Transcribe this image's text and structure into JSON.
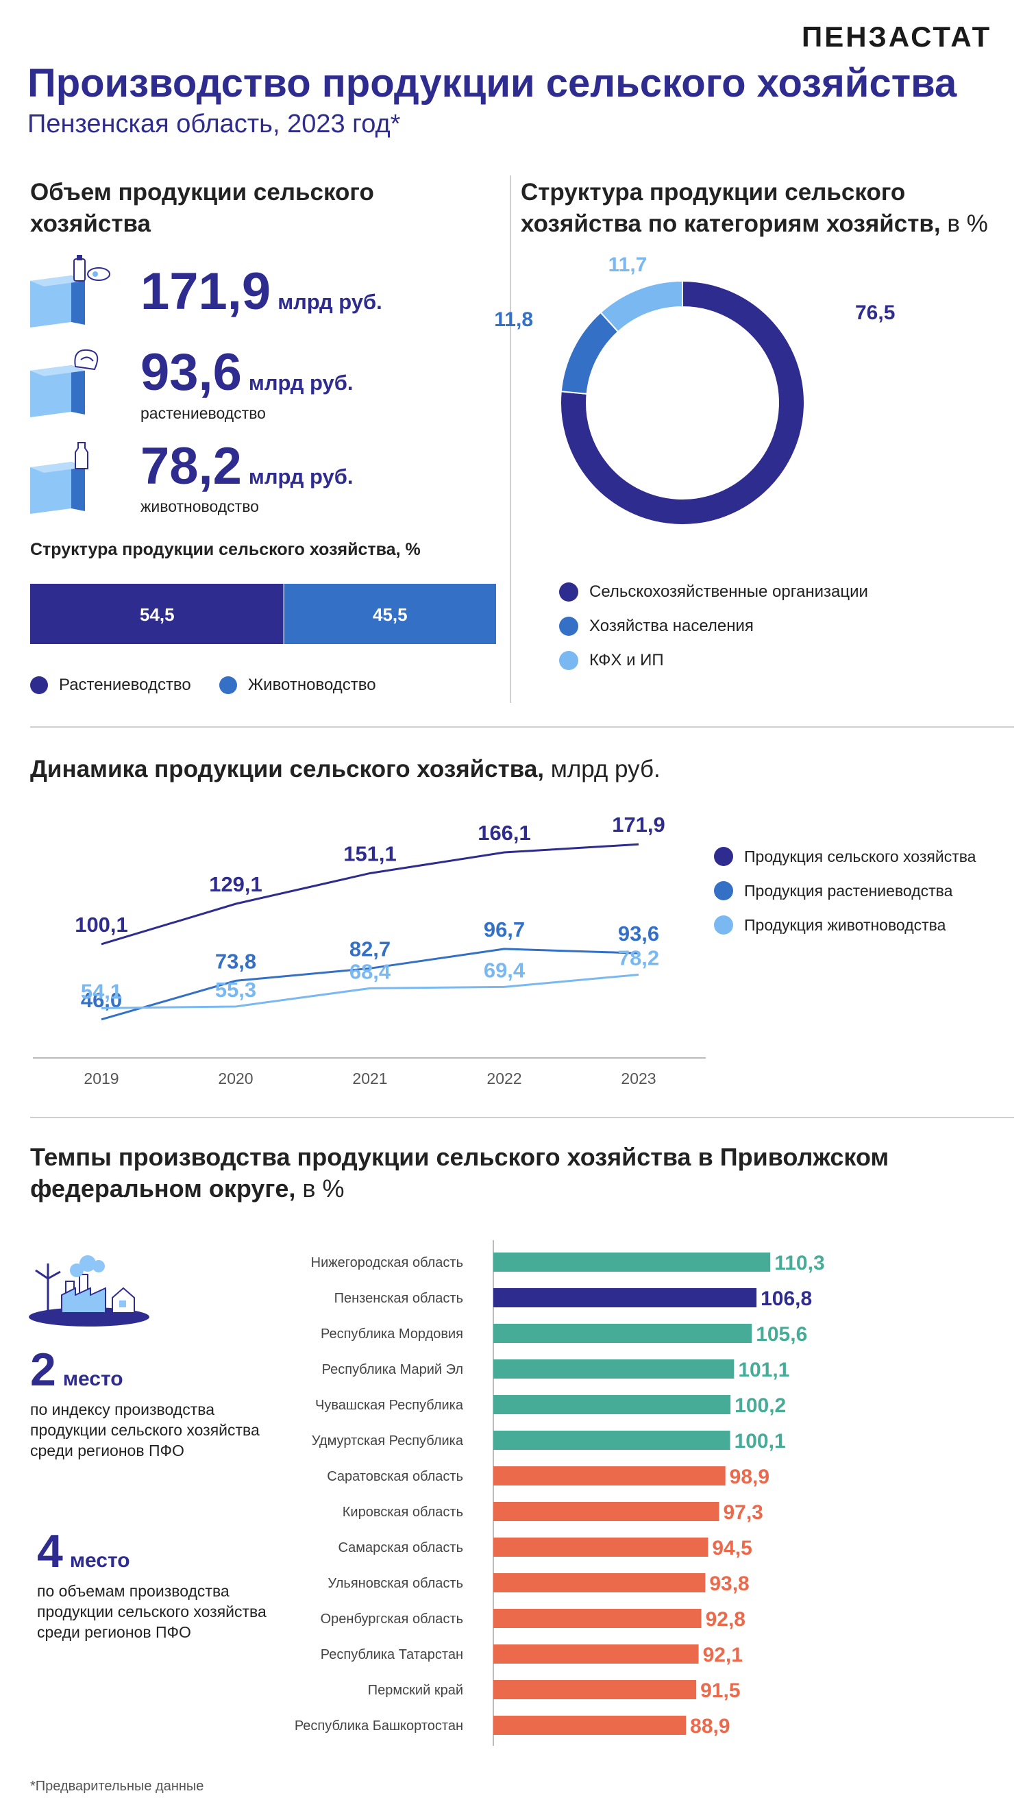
{
  "header": {
    "logo": "ПЕНЗАСТАТ",
    "title": "Производство продукции сельского хозяйства",
    "subtitle": "Пензенская область, 2023 год*"
  },
  "volume": {
    "title": "Объем продукции сельского хозяйства",
    "items": [
      {
        "value": "171,9",
        "unit": "млрд руб.",
        "caption": "",
        "icon": "milk-box-icon"
      },
      {
        "value": "93,6",
        "unit": "млрд руб.",
        "caption": "растениеводство",
        "icon": "grain-box-icon"
      },
      {
        "value": "78,2",
        "unit": "млрд руб.",
        "caption": "животноводство",
        "icon": "milk-bottle-box-icon"
      }
    ],
    "structure_title": "Структура продукции сельского хозяйства, %",
    "legend": [
      "Растениеводство",
      "Животноводство"
    ]
  },
  "dynamics": {
    "title": "Динамика продукции сельского хозяйства,",
    "unit": "млрд руб."
  },
  "categories": {
    "title": "Структура продукции сельского хозяйства по категориям хозяйств,",
    "unit": "в %"
  },
  "regions": {
    "title": "Темпы производства продукции сельского хозяйства в Приволжском федеральном округе,",
    "unit": "в %",
    "rank1": {
      "number": "2",
      "word": "место",
      "caption": "по индексу производства продукции сельского хозяйства среди регионов ПФО"
    },
    "rank2": {
      "number": "4",
      "word": "место",
      "caption": "по объемам производства продукции сельского хозяйства среди регионов ПФО"
    },
    "icon": "farm-factory-icon"
  },
  "footnote": "*Предварительные данные",
  "colors": {
    "dark": "#2f2c8f",
    "mid": "#3470c6",
    "light": "#7ab8f2",
    "green": "#46ab97",
    "orange": "#ec6a4c"
  },
  "chart_data": [
    {
      "type": "bar",
      "orientation": "horizontal-stacked",
      "series": [
        {
          "name": "Растениеводство",
          "values": [
            54.5
          ],
          "label": "54,5"
        },
        {
          "name": "Животноводство",
          "values": [
            45.5
          ],
          "label": "45,5"
        }
      ]
    },
    {
      "type": "pie",
      "variant": "donut",
      "labels": [
        "Сельскохозяйственные организации",
        "Хозяйства населения",
        "КФХ и ИП"
      ],
      "values": [
        76.5,
        11.8,
        11.7
      ],
      "value_labels": [
        "76,5",
        "11,8",
        "11,7"
      ],
      "legend_position": "bottom"
    },
    {
      "type": "line",
      "x": [
        "2019",
        "2020",
        "2021",
        "2022",
        "2023"
      ],
      "series": [
        {
          "name": "Продукция сельского хозяйства",
          "values": [
            100.1,
            129.1,
            151.1,
            166.1,
            171.9
          ],
          "labels": [
            "100,1",
            "129,1",
            "151,1",
            "166,1",
            "171,9"
          ]
        },
        {
          "name": "Продукция растениеводства",
          "values": [
            46.0,
            73.8,
            82.7,
            96.7,
            93.6
          ],
          "labels": [
            "46,0",
            "73,8",
            "82,7",
            "96,7",
            "93,6"
          ]
        },
        {
          "name": "Продукция животноводства",
          "values": [
            54.1,
            55.3,
            68.4,
            69.4,
            78.2
          ],
          "labels": [
            "54,1",
            "55,3",
            "68,4",
            "69,4",
            "78,2"
          ]
        }
      ],
      "legend_position": "right",
      "grid": false
    },
    {
      "type": "bar",
      "orientation": "horizontal",
      "categories": [
        "Нижегородская область",
        "Пензенская область",
        "Республика Мордовия",
        "Республика Марий Эл",
        "Чувашская Республика",
        "Удмуртская Республика",
        "Саратовская область",
        "Кировская область",
        "Самарская область",
        "Ульяновская область",
        "Оренбургская область",
        "Республика Татарстан",
        "Пермский край",
        "Республика Башкортостан"
      ],
      "values": [
        110.3,
        106.8,
        105.6,
        101.1,
        100.2,
        100.1,
        98.9,
        97.3,
        94.5,
        93.8,
        92.8,
        92.1,
        91.5,
        88.9
      ],
      "value_labels": [
        "110,3",
        "106,8",
        "105,6",
        "101,1",
        "100,2",
        "100,1",
        "98,9",
        "97,3",
        "94,5",
        "93,8",
        "92,8",
        "92,1",
        "91,5",
        "88,9"
      ]
    }
  ]
}
